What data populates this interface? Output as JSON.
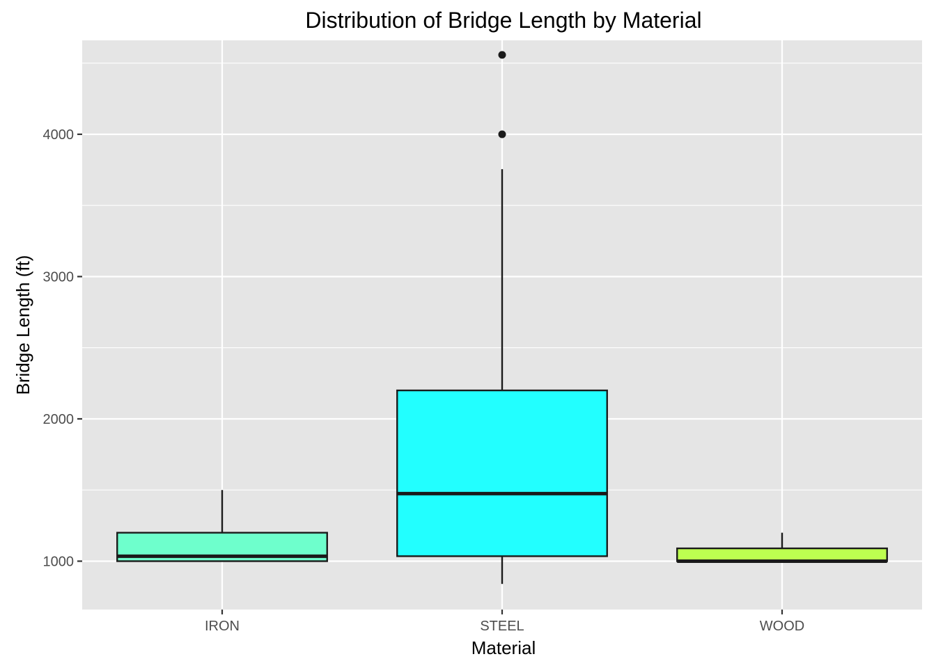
{
  "chart_data": {
    "type": "boxplot",
    "title": "Distribution of Bridge Length by Material",
    "xlabel": "Material",
    "ylabel": "Bridge Length (ft)",
    "categories": [
      "IRON",
      "STEEL",
      "WOOD"
    ],
    "ylim": [
      660,
      4660
    ],
    "yticks": [
      1000,
      2000,
      3000,
      4000
    ],
    "ytick_labels": [
      "1000",
      "2000",
      "3000",
      "4000"
    ],
    "grid": true,
    "legend": "none",
    "boxes": [
      {
        "category": "IRON",
        "whisker_low": 1000,
        "q1": 1000,
        "median": 1035,
        "q3": 1200,
        "whisker_high": 1500,
        "outliers": [],
        "color": "#6EFFCC"
      },
      {
        "category": "STEEL",
        "whisker_low": 840,
        "q1": 1035,
        "median": 1475,
        "q3": 2200,
        "whisker_high": 3755,
        "outliers": [
          4000,
          4558
        ],
        "color": "#22FFFF"
      },
      {
        "category": "WOOD",
        "whisker_low": 1000,
        "q1": 1000,
        "median": 1000,
        "q3": 1090,
        "whisker_high": 1200,
        "outliers": [],
        "color": "#BDFF50"
      }
    ]
  }
}
